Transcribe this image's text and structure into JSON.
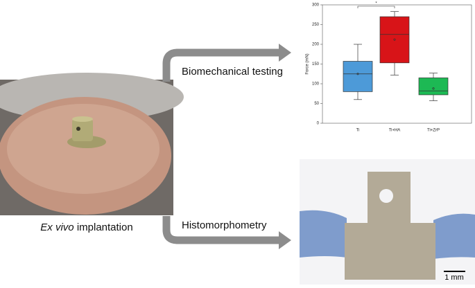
{
  "labels": {
    "implantation_italic": "Ex vivo",
    "implantation_rest": "implantation",
    "biomech": "Biomechanical testing",
    "histo": "Histomorphometry",
    "scale_bar": "1 mm"
  },
  "chart_data": {
    "type": "box",
    "ylabel": "Force (mN)",
    "categories": [
      "Ti",
      "Ti+HA",
      "Ti+ZrP"
    ],
    "boxes": [
      {
        "min": 60,
        "q1": 80,
        "median": 125,
        "mean": 125,
        "q3": 157,
        "max": 200,
        "color": "#4d9ad8"
      },
      {
        "min": 122,
        "q1": 153,
        "median": 225,
        "mean": 212,
        "q3": 270,
        "max": 283,
        "color": "#d81418"
      },
      {
        "min": 57,
        "q1": 72,
        "median": 82,
        "mean": 88,
        "q3": 115,
        "max": 127,
        "color": "#1db954"
      }
    ],
    "ylim": [
      0,
      300
    ],
    "yticks": [
      0,
      50,
      100,
      150,
      200,
      250,
      300
    ],
    "significance_label": "*"
  }
}
